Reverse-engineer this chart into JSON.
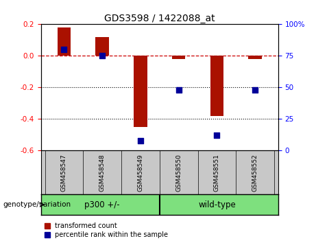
{
  "title": "GDS3598 / 1422088_at",
  "samples": [
    "GSM458547",
    "GSM458548",
    "GSM458549",
    "GSM458550",
    "GSM458551",
    "GSM458552"
  ],
  "red_bars": [
    0.18,
    0.12,
    -0.45,
    -0.02,
    -0.38,
    -0.02
  ],
  "blue_dots": [
    80,
    75,
    8,
    48,
    12,
    48
  ],
  "ylim_left": [
    -0.6,
    0.2
  ],
  "ylim_right": [
    0,
    100
  ],
  "yticks_left": [
    -0.6,
    -0.4,
    -0.2,
    0.0,
    0.2
  ],
  "yticks_right": [
    0,
    25,
    50,
    75,
    100
  ],
  "ytick_labels_right": [
    "0",
    "25",
    "50",
    "75",
    "100%"
  ],
  "groups": [
    {
      "label": "p300 +/-",
      "start": 0,
      "end": 3
    },
    {
      "label": "wild-type",
      "start": 3,
      "end": 6
    }
  ],
  "bar_color": "#AA1100",
  "dot_color": "#000099",
  "dot_size": 30,
  "bar_width": 0.35,
  "hline_color": "#CC0000",
  "grid_color": "black",
  "bg_label": "#C8C8C8",
  "bg_group": "#7EE07E",
  "legend_red_label": "transformed count",
  "legend_blue_label": "percentile rank within the sample",
  "xlabel_genotype": "genotype/variation"
}
